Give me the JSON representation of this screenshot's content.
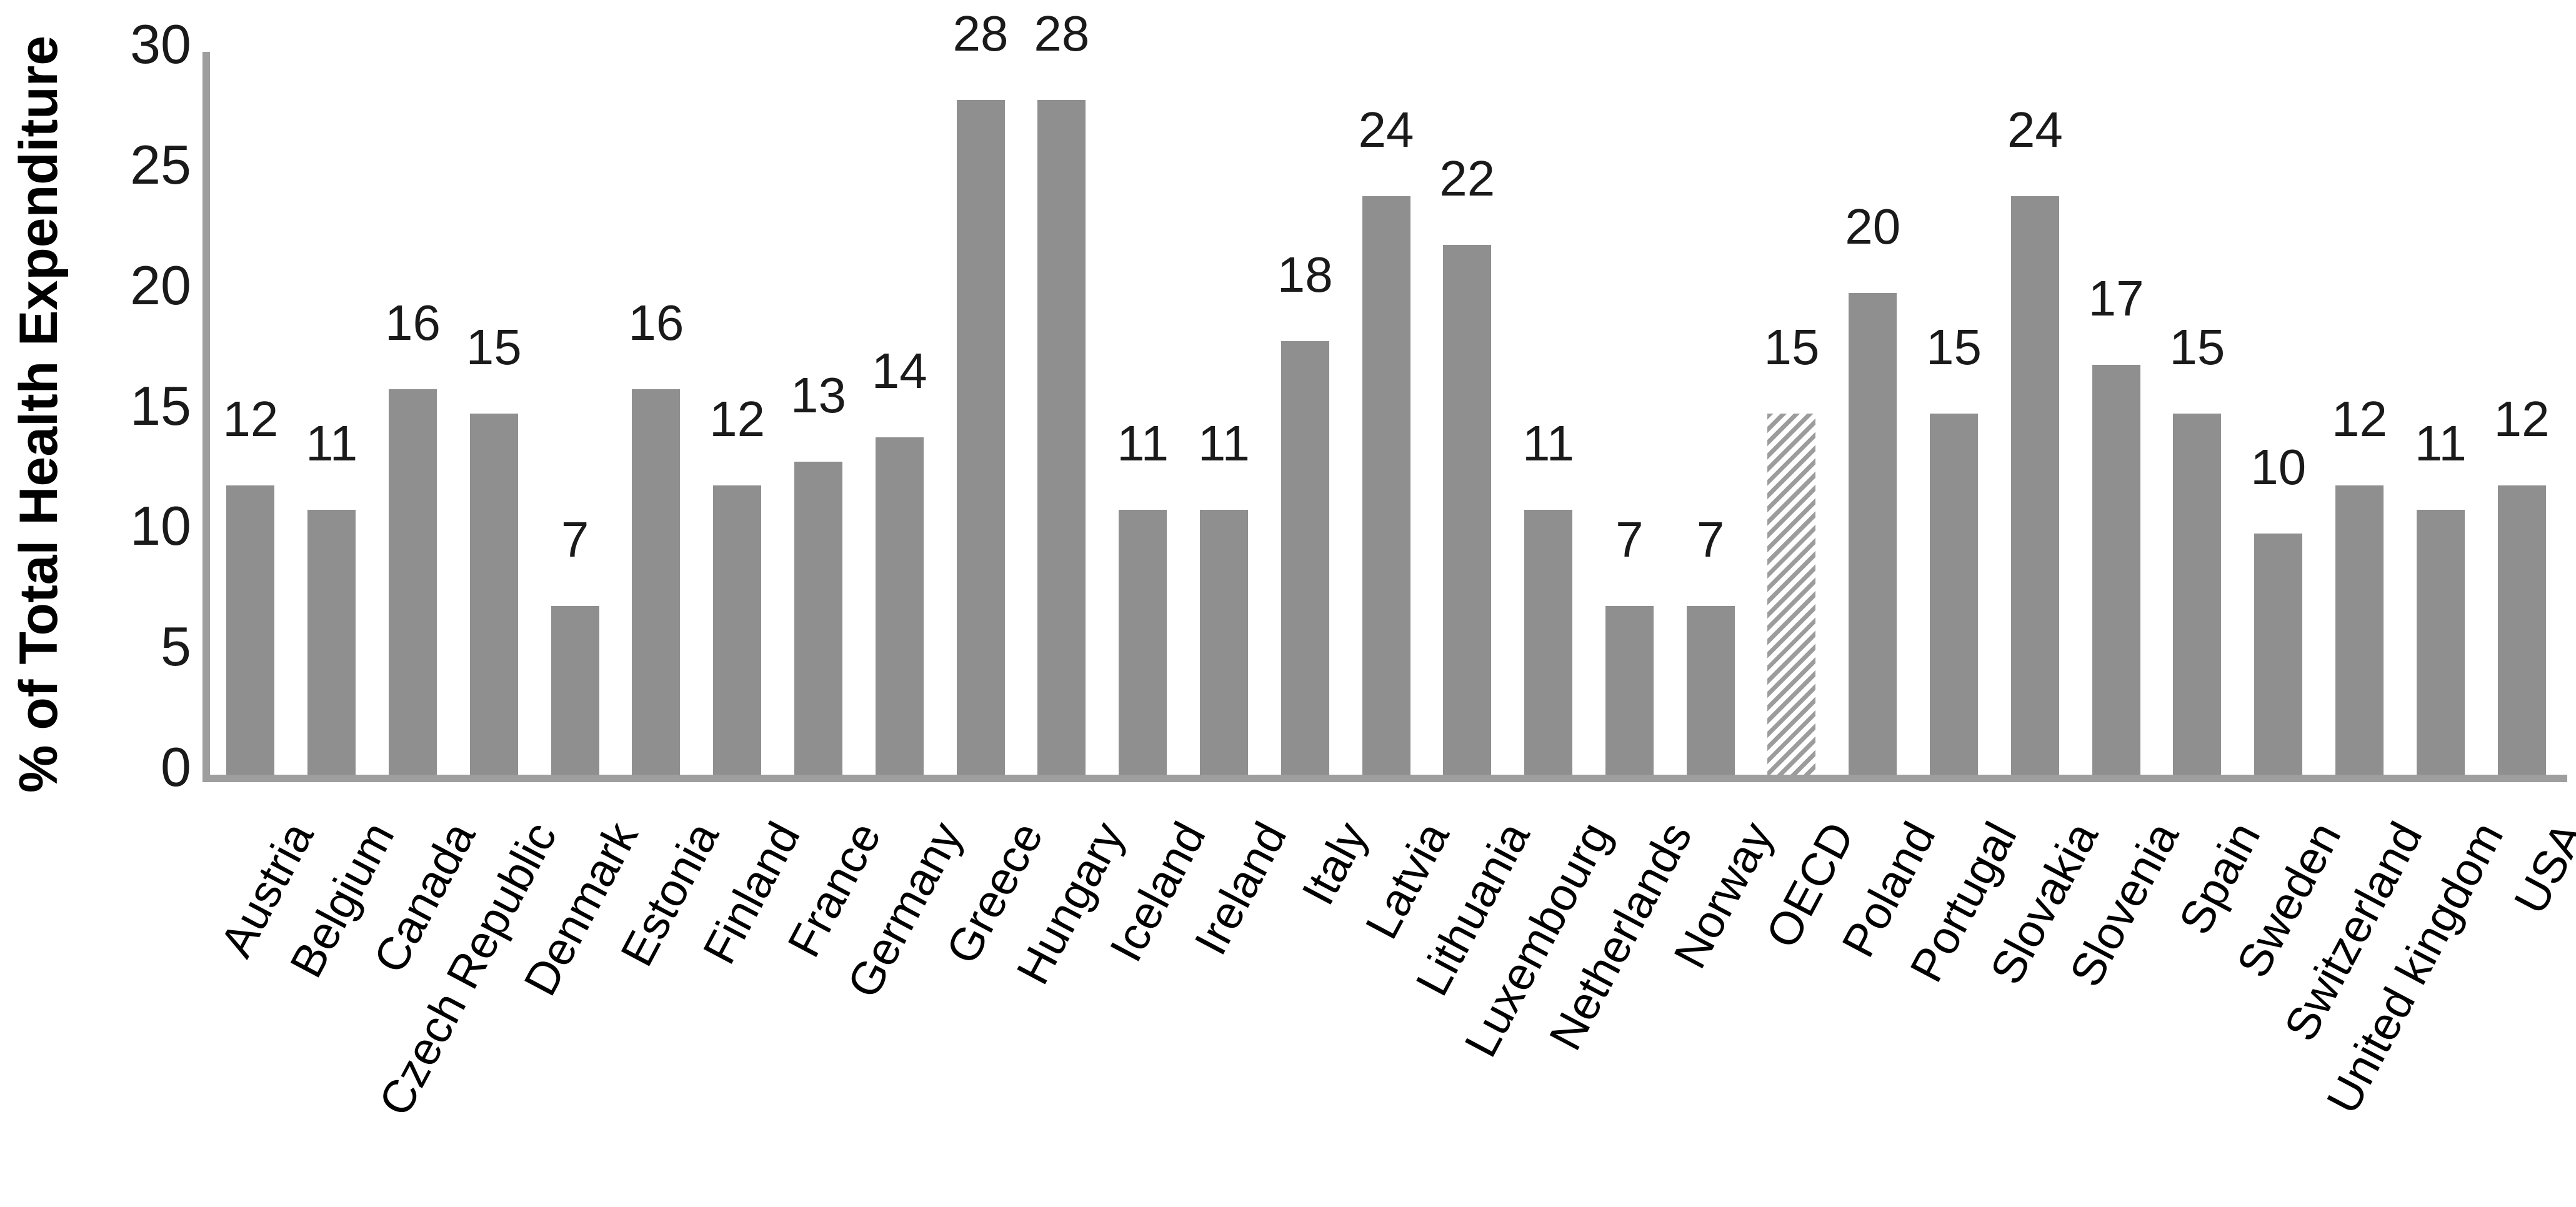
{
  "chart_data": {
    "type": "bar",
    "title": "",
    "ylabel": "% of Total Health Expenditure",
    "xlabel": "",
    "ylim": [
      0,
      30
    ],
    "yticks": [
      0,
      5,
      10,
      15,
      20,
      25,
      30
    ],
    "grid": false,
    "legend_position": "none",
    "categories": [
      "Austria",
      "Belgium",
      "Canada",
      "Czech Republic",
      "Denmark",
      "Estonia",
      "Finland",
      "France",
      "Germany",
      "Greece",
      "Hungary",
      "Iceland",
      "Ireland",
      "Italy",
      "Latvia",
      "Lithuania",
      "Luxembourg",
      "Netherlands",
      "Norway",
      "OECD",
      "Poland",
      "Portugal",
      "Slovakia",
      "Slovenia",
      "Spain",
      "Sweden",
      "Switzerland",
      "United kingdom",
      "USA"
    ],
    "values": [
      12,
      11,
      16,
      15,
      7,
      16,
      12,
      13,
      14,
      28,
      28,
      11,
      11,
      18,
      24,
      22,
      11,
      7,
      7,
      15,
      20,
      15,
      24,
      17,
      15,
      10,
      12,
      11,
      12
    ],
    "data_labels_shown": true,
    "highlighted_category": "OECD",
    "highlight_style": "diagonal-hatch",
    "bar_color": "#8f8f8f",
    "hatch_stripe_color": "#9c9c9c",
    "axis_line_color": "#9e9e9e",
    "label_text_color": "#1a1a1a"
  }
}
